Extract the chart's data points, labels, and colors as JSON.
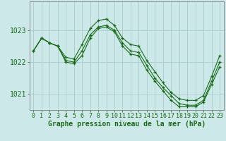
{
  "background_color": "#cce8e8",
  "grid_color": "#aacccc",
  "line_color": "#1a6b1a",
  "marker_color": "#1a6b1a",
  "xlabel": "Graphe pression niveau de la mer (hPa)",
  "xlabel_fontsize": 7,
  "tick_fontsize": 6,
  "ylim": [
    1020.5,
    1023.9
  ],
  "xlim": [
    -0.5,
    23.5
  ],
  "xticks": [
    0,
    1,
    2,
    3,
    4,
    5,
    6,
    7,
    8,
    9,
    10,
    11,
    12,
    13,
    14,
    15,
    16,
    17,
    18,
    19,
    20,
    21,
    22,
    23
  ],
  "yticks": [
    1021,
    1022,
    1023
  ],
  "ytick_labels": [
    "1021",
    "1022",
    "1023"
  ],
  "series": [
    {
      "x": [
        0,
        1,
        2,
        3,
        4,
        5,
        6,
        7,
        8,
        9,
        10,
        11,
        12,
        13,
        14,
        15,
        16,
        17,
        18,
        19,
        20,
        21,
        22,
        23
      ],
      "y": [
        1022.35,
        1022.75,
        1022.6,
        1022.5,
        1022.15,
        1022.1,
        1022.55,
        1023.05,
        1023.3,
        1023.35,
        1023.15,
        1022.75,
        1022.55,
        1022.5,
        1022.05,
        1021.7,
        1021.35,
        1021.05,
        1020.85,
        1020.8,
        1020.8,
        1020.95,
        1021.55,
        1022.2
      ]
    },
    {
      "x": [
        0,
        1,
        2,
        3,
        4,
        5,
        6,
        7,
        8,
        9,
        10,
        11,
        12,
        13,
        14,
        15,
        16,
        17,
        18,
        19,
        20,
        21,
        22,
        23
      ],
      "y": [
        1022.35,
        1022.75,
        1022.6,
        1022.5,
        1022.05,
        1022.0,
        1022.35,
        1022.85,
        1023.1,
        1023.15,
        1023.0,
        1022.6,
        1022.35,
        1022.3,
        1021.9,
        1021.5,
        1021.2,
        1020.95,
        1020.7,
        1020.65,
        1020.65,
        1020.8,
        1021.4,
        1022.0
      ]
    },
    {
      "x": [
        0,
        1,
        2,
        3,
        4,
        5,
        6,
        7,
        8,
        9,
        10,
        11,
        12,
        13,
        14,
        15,
        16,
        17,
        18,
        19,
        20,
        21,
        22,
        23
      ],
      "y": [
        1022.35,
        1022.75,
        1022.6,
        1022.5,
        1022.0,
        1021.95,
        1022.2,
        1022.75,
        1023.05,
        1023.1,
        1022.95,
        1022.5,
        1022.25,
        1022.2,
        1021.75,
        1021.4,
        1021.1,
        1020.8,
        1020.6,
        1020.6,
        1020.6,
        1020.75,
        1021.3,
        1021.85
      ]
    }
  ]
}
